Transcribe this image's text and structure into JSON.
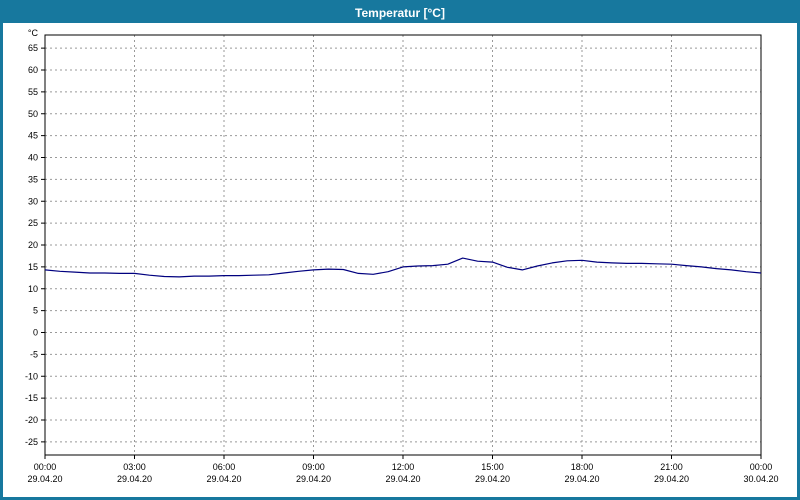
{
  "window": {
    "title": "Temperatur [°C]"
  },
  "colors": {
    "frame": "#17789e",
    "title_text": "#ffffff",
    "plot_background": "#ffffff",
    "grid": "#999999",
    "axis": "#000000",
    "line": "#00007f",
    "tick_text": "#000000"
  },
  "chart_data": {
    "type": "line",
    "title": "Temperatur [°C]",
    "ylabel": "°C",
    "ylim": [
      -28,
      68
    ],
    "xlim": [
      0,
      24
    ],
    "grid": true,
    "legend": "none",
    "y_ticks": [
      -25,
      -20,
      -15,
      -10,
      -5,
      0,
      5,
      10,
      15,
      20,
      25,
      30,
      35,
      40,
      45,
      50,
      55,
      60,
      65
    ],
    "x_ticks": [
      {
        "hour": 0,
        "time": "00:00",
        "date": "29.04.20"
      },
      {
        "hour": 3,
        "time": "03:00",
        "date": "29.04.20"
      },
      {
        "hour": 6,
        "time": "06:00",
        "date": "29.04.20"
      },
      {
        "hour": 9,
        "time": "09:00",
        "date": "29.04.20"
      },
      {
        "hour": 12,
        "time": "12:00",
        "date": "29.04.20"
      },
      {
        "hour": 15,
        "time": "15:00",
        "date": "29.04.20"
      },
      {
        "hour": 18,
        "time": "18:00",
        "date": "29.04.20"
      },
      {
        "hour": 21,
        "time": "21:00",
        "date": "29.04.20"
      },
      {
        "hour": 24,
        "time": "00:00",
        "date": "30.04.20"
      }
    ],
    "series": [
      {
        "name": "Temperatur",
        "color": "#00007f",
        "x_hours": [
          0,
          0.5,
          1,
          1.5,
          2,
          2.5,
          3,
          3.5,
          4,
          4.5,
          5,
          5.5,
          6,
          6.5,
          7,
          7.5,
          8,
          8.5,
          9,
          9.5,
          10,
          10.5,
          11,
          11.5,
          12,
          12.5,
          13,
          13.5,
          14,
          14.5,
          15,
          15.5,
          16,
          16.5,
          17,
          17.5,
          18,
          18.5,
          19,
          19.5,
          20,
          20.5,
          21,
          21.5,
          22,
          22.5,
          23,
          23.5,
          24
        ],
        "values": [
          14.3,
          14.0,
          13.8,
          13.6,
          13.6,
          13.5,
          13.5,
          13.1,
          12.8,
          12.7,
          12.9,
          12.9,
          13.0,
          13.0,
          13.1,
          13.2,
          13.6,
          14.0,
          14.3,
          14.5,
          14.4,
          13.5,
          13.3,
          13.9,
          15.0,
          15.2,
          15.3,
          15.6,
          17.0,
          16.3,
          16.1,
          14.9,
          14.3,
          15.2,
          15.9,
          16.4,
          16.5,
          16.1,
          15.9,
          15.8,
          15.8,
          15.7,
          15.6,
          15.3,
          15.0,
          14.6,
          14.3,
          13.9,
          13.6
        ]
      }
    ]
  }
}
